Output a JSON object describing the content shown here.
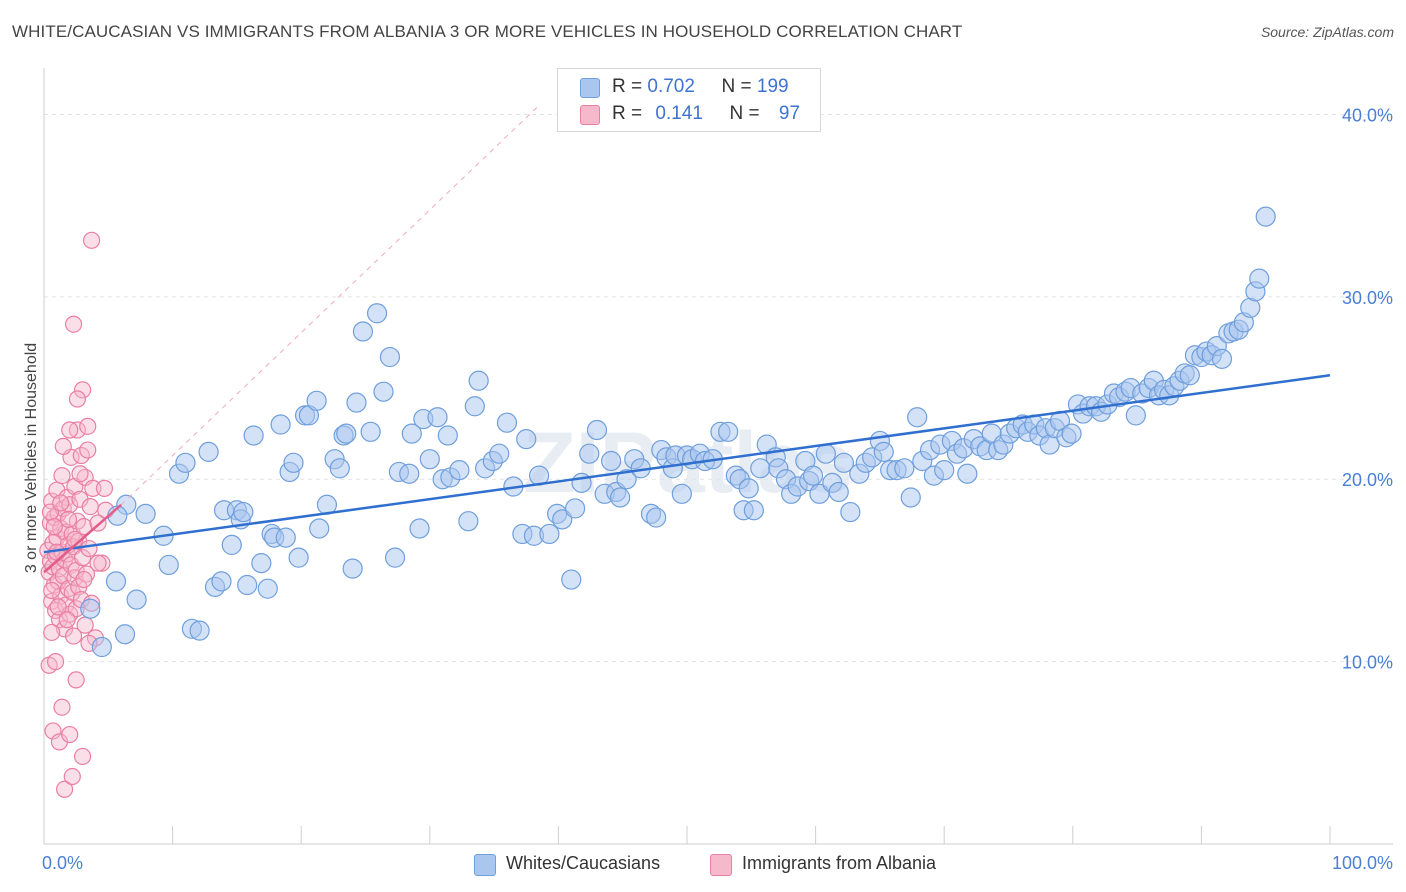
{
  "title": "WHITE/CAUCASIAN VS IMMIGRANTS FROM ALBANIA 3 OR MORE VEHICLES IN HOUSEHOLD CORRELATION CHART",
  "source": "Source: ZipAtlas.com",
  "watermark": "ZIPatlas",
  "colors": {
    "blue_fill": "#a9c6ef",
    "blue_stroke": "#6f9fdc",
    "blue_line": "#2f6fcf",
    "pink_fill": "#f6b8cb",
    "pink_stroke": "#ea7fa2",
    "pink_line": "#e25d8a",
    "tick_text": "#4a7fd4",
    "grid": "#e3e3e3"
  },
  "legend_top": {
    "rows": [
      {
        "r_label": "R =",
        "r_value": "0.702",
        "n_label": "N =",
        "n_value": "199"
      },
      {
        "r_label": "R =",
        "r_value": "0.141",
        "n_label": "N =",
        "n_value": "97"
      }
    ]
  },
  "legend_bottom": [
    "Whites/Caucasians",
    "Immigrants from Albania"
  ],
  "chart_data": {
    "type": "scatter",
    "title": "WHITE/CAUCASIAN VS IMMIGRANTS FROM ALBANIA 3 OR MORE VEHICLES IN HOUSEHOLD CORRELATION CHART",
    "xlabel": "",
    "ylabel": "3 or more Vehicles in Household",
    "xlim": [
      0,
      100
    ],
    "ylim": [
      0,
      42
    ],
    "x_ticks": [
      0,
      10,
      20,
      30,
      40,
      50,
      60,
      70,
      80,
      90,
      100
    ],
    "x_tick_labels": {
      "0": "0.0%",
      "100": "100.0%"
    },
    "y_ticks": [
      10,
      20,
      30,
      40
    ],
    "y_tick_labels": [
      "10.0%",
      "20.0%",
      "30.0%",
      "40.0%"
    ],
    "grid": "horizontal dashed",
    "legend_position": "top-center",
    "series": [
      {
        "name": "Whites/Caucasians",
        "color": "#a9c6ef",
        "r": 0.702,
        "n": 199,
        "trend": {
          "x": [
            0,
            100
          ],
          "y": [
            16.0,
            25.7
          ]
        },
        "points": [
          [
            6.4,
            18.6
          ],
          [
            7.9,
            18.1
          ],
          [
            9.3,
            16.9
          ],
          [
            9.7,
            15.3
          ],
          [
            10.5,
            20.3
          ],
          [
            11.0,
            20.9
          ],
          [
            11.5,
            11.8
          ],
          [
            12.1,
            11.7
          ],
          [
            12.8,
            21.5
          ],
          [
            13.3,
            14.1
          ],
          [
            13.8,
            14.4
          ],
          [
            14.0,
            18.3
          ],
          [
            14.6,
            16.4
          ],
          [
            15.0,
            18.3
          ],
          [
            15.3,
            17.8
          ],
          [
            15.5,
            18.2
          ],
          [
            15.8,
            14.2
          ],
          [
            16.3,
            22.4
          ],
          [
            16.9,
            15.4
          ],
          [
            17.4,
            14.0
          ],
          [
            17.7,
            17.0
          ],
          [
            17.9,
            16.8
          ],
          [
            18.4,
            23.0
          ],
          [
            18.8,
            16.8
          ],
          [
            19.1,
            20.4
          ],
          [
            19.4,
            20.9
          ],
          [
            19.8,
            15.7
          ],
          [
            20.3,
            23.5
          ],
          [
            20.6,
            23.5
          ],
          [
            21.2,
            24.3
          ],
          [
            21.4,
            17.3
          ],
          [
            22.0,
            18.6
          ],
          [
            22.6,
            21.1
          ],
          [
            23.0,
            20.6
          ],
          [
            23.3,
            22.4
          ],
          [
            23.5,
            22.5
          ],
          [
            24.0,
            15.1
          ],
          [
            24.3,
            24.2
          ],
          [
            24.8,
            28.1
          ],
          [
            25.4,
            22.6
          ],
          [
            25.9,
            29.1
          ],
          [
            26.4,
            24.8
          ],
          [
            26.9,
            26.7
          ],
          [
            27.3,
            15.7
          ],
          [
            27.6,
            20.4
          ],
          [
            28.4,
            20.3
          ],
          [
            28.6,
            22.5
          ],
          [
            29.2,
            17.3
          ],
          [
            29.5,
            23.3
          ],
          [
            30.0,
            21.1
          ],
          [
            30.6,
            23.4
          ],
          [
            31.0,
            20.0
          ],
          [
            31.4,
            22.4
          ],
          [
            31.6,
            20.1
          ],
          [
            32.3,
            20.5
          ],
          [
            33.0,
            17.7
          ],
          [
            33.5,
            24.0
          ],
          [
            33.8,
            25.4
          ],
          [
            34.3,
            20.6
          ],
          [
            34.9,
            21.0
          ],
          [
            35.4,
            21.4
          ],
          [
            36.0,
            23.1
          ],
          [
            36.5,
            19.6
          ],
          [
            37.2,
            17.0
          ],
          [
            37.5,
            22.2
          ],
          [
            38.1,
            16.9
          ],
          [
            38.5,
            20.2
          ],
          [
            39.3,
            17.0
          ],
          [
            39.9,
            18.1
          ],
          [
            40.3,
            17.8
          ],
          [
            41.0,
            14.5
          ],
          [
            41.3,
            18.4
          ],
          [
            41.8,
            19.8
          ],
          [
            42.4,
            21.4
          ],
          [
            43.0,
            22.7
          ],
          [
            43.6,
            19.2
          ],
          [
            44.1,
            21.0
          ],
          [
            44.5,
            19.3
          ],
          [
            44.8,
            19.0
          ],
          [
            45.3,
            20.0
          ],
          [
            45.9,
            21.1
          ],
          [
            46.4,
            20.6
          ],
          [
            47.2,
            18.1
          ],
          [
            47.6,
            17.9
          ],
          [
            48.0,
            21.6
          ],
          [
            48.4,
            21.2
          ],
          [
            48.9,
            20.6
          ],
          [
            49.1,
            21.3
          ],
          [
            49.6,
            19.2
          ],
          [
            50.0,
            21.3
          ],
          [
            50.4,
            21.1
          ],
          [
            51.0,
            21.4
          ],
          [
            51.4,
            21.0
          ],
          [
            52.0,
            21.1
          ],
          [
            52.6,
            22.6
          ],
          [
            53.2,
            22.6
          ],
          [
            53.8,
            20.2
          ],
          [
            54.1,
            20.0
          ],
          [
            54.4,
            18.3
          ],
          [
            54.8,
            19.5
          ],
          [
            55.2,
            18.3
          ],
          [
            55.7,
            20.6
          ],
          [
            56.2,
            21.9
          ],
          [
            56.9,
            21.2
          ],
          [
            57.1,
            20.6
          ],
          [
            57.7,
            20.0
          ],
          [
            58.1,
            19.2
          ],
          [
            58.6,
            19.6
          ],
          [
            59.2,
            21.0
          ],
          [
            59.5,
            19.9
          ],
          [
            59.8,
            20.2
          ],
          [
            60.3,
            19.2
          ],
          [
            60.8,
            21.4
          ],
          [
            61.3,
            19.8
          ],
          [
            61.8,
            19.3
          ],
          [
            62.2,
            20.9
          ],
          [
            62.7,
            18.2
          ],
          [
            63.4,
            20.3
          ],
          [
            63.9,
            20.9
          ],
          [
            64.4,
            21.2
          ],
          [
            65.0,
            22.1
          ],
          [
            65.3,
            21.5
          ],
          [
            65.8,
            20.5
          ],
          [
            66.3,
            20.5
          ],
          [
            66.9,
            20.6
          ],
          [
            67.4,
            19.0
          ],
          [
            67.9,
            23.4
          ],
          [
            68.3,
            21.0
          ],
          [
            68.9,
            21.6
          ],
          [
            69.2,
            20.2
          ],
          [
            69.7,
            21.9
          ],
          [
            70.0,
            20.5
          ],
          [
            70.6,
            22.1
          ],
          [
            71.0,
            21.4
          ],
          [
            71.5,
            21.7
          ],
          [
            71.8,
            20.3
          ],
          [
            72.3,
            22.2
          ],
          [
            72.8,
            21.8
          ],
          [
            73.3,
            21.6
          ],
          [
            73.7,
            22.5
          ],
          [
            74.2,
            21.6
          ],
          [
            74.6,
            21.9
          ],
          [
            75.1,
            22.5
          ],
          [
            75.6,
            22.8
          ],
          [
            76.1,
            23.0
          ],
          [
            76.5,
            22.6
          ],
          [
            77.0,
            23.0
          ],
          [
            77.4,
            22.4
          ],
          [
            77.9,
            22.8
          ],
          [
            78.2,
            21.9
          ],
          [
            78.6,
            22.8
          ],
          [
            79.0,
            23.2
          ],
          [
            79.5,
            22.3
          ],
          [
            79.9,
            22.5
          ],
          [
            80.4,
            24.1
          ],
          [
            80.8,
            23.6
          ],
          [
            81.3,
            24.0
          ],
          [
            81.8,
            24.0
          ],
          [
            82.2,
            23.7
          ],
          [
            82.7,
            24.1
          ],
          [
            83.2,
            24.7
          ],
          [
            83.6,
            24.5
          ],
          [
            84.1,
            24.8
          ],
          [
            84.5,
            25.0
          ],
          [
            84.9,
            23.5
          ],
          [
            85.4,
            24.7
          ],
          [
            85.9,
            25.0
          ],
          [
            86.3,
            25.4
          ],
          [
            86.7,
            24.6
          ],
          [
            87.1,
            24.9
          ],
          [
            87.5,
            24.6
          ],
          [
            87.9,
            25.1
          ],
          [
            88.3,
            25.4
          ],
          [
            88.7,
            25.8
          ],
          [
            89.1,
            25.7
          ],
          [
            89.5,
            26.8
          ],
          [
            90.0,
            26.7
          ],
          [
            90.4,
            27.0
          ],
          [
            90.8,
            26.8
          ],
          [
            91.2,
            27.3
          ],
          [
            91.6,
            26.6
          ],
          [
            92.1,
            28.0
          ],
          [
            92.5,
            28.1
          ],
          [
            92.9,
            28.2
          ],
          [
            93.3,
            28.6
          ],
          [
            93.8,
            29.4
          ],
          [
            94.2,
            30.3
          ],
          [
            94.5,
            31.0
          ],
          [
            95.0,
            34.4
          ],
          [
            5.7,
            18.0
          ],
          [
            3.6,
            12.9
          ],
          [
            4.5,
            10.8
          ],
          [
            5.6,
            14.4
          ],
          [
            6.3,
            11.5
          ],
          [
            7.2,
            13.4
          ]
        ]
      },
      {
        "name": "Immigrants from Albania",
        "color": "#f6b8cb",
        "r": 0.141,
        "n": 97,
        "trend": {
          "x": [
            0,
            6.0
          ],
          "y": [
            14.9,
            18.6
          ]
        },
        "points": [
          [
            0.3,
            16.1
          ],
          [
            0.4,
            14.9
          ],
          [
            0.5,
            17.6
          ],
          [
            0.5,
            15.5
          ],
          [
            0.6,
            18.8
          ],
          [
            0.6,
            13.3
          ],
          [
            0.7,
            15.2
          ],
          [
            0.7,
            16.5
          ],
          [
            0.8,
            14.2
          ],
          [
            0.8,
            17.9
          ],
          [
            0.9,
            12.8
          ],
          [
            0.9,
            15.8
          ],
          [
            1.0,
            19.4
          ],
          [
            1.0,
            16.8
          ],
          [
            1.1,
            14.4
          ],
          [
            1.1,
            18.1
          ],
          [
            1.2,
            12.3
          ],
          [
            1.2,
            15.1
          ],
          [
            1.3,
            17.3
          ],
          [
            1.3,
            13.6
          ],
          [
            1.4,
            16.0
          ],
          [
            1.4,
            20.2
          ],
          [
            1.5,
            14.7
          ],
          [
            1.5,
            18.4
          ],
          [
            1.6,
            11.8
          ],
          [
            1.6,
            15.6
          ],
          [
            1.7,
            17.1
          ],
          [
            1.7,
            13.1
          ],
          [
            1.8,
            19.0
          ],
          [
            1.8,
            15.9
          ],
          [
            1.9,
            14.0
          ],
          [
            1.9,
            16.4
          ],
          [
            2.0,
            12.6
          ],
          [
            2.0,
            18.6
          ],
          [
            2.1,
            15.3
          ],
          [
            2.1,
            21.2
          ],
          [
            2.2,
            13.8
          ],
          [
            2.2,
            17.0
          ],
          [
            2.3,
            11.4
          ],
          [
            2.3,
            16.3
          ],
          [
            2.4,
            14.6
          ],
          [
            2.4,
            19.6
          ],
          [
            2.5,
            12.9
          ],
          [
            2.5,
            15.0
          ],
          [
            2.6,
            22.7
          ],
          [
            2.6,
            17.7
          ],
          [
            2.7,
            14.1
          ],
          [
            2.7,
            16.6
          ],
          [
            2.8,
            18.9
          ],
          [
            2.9,
            13.4
          ],
          [
            2.9,
            21.3
          ],
          [
            3.0,
            15.7
          ],
          [
            3.0,
            24.9
          ],
          [
            3.1,
            17.4
          ],
          [
            3.2,
            12.0
          ],
          [
            3.2,
            20.1
          ],
          [
            3.3,
            14.8
          ],
          [
            3.4,
            22.9
          ],
          [
            3.5,
            16.2
          ],
          [
            3.6,
            18.5
          ],
          [
            3.7,
            13.2
          ],
          [
            3.8,
            19.5
          ],
          [
            4.0,
            11.3
          ],
          [
            4.2,
            17.6
          ],
          [
            4.5,
            15.4
          ],
          [
            4.8,
            18.3
          ],
          [
            0.4,
            9.8
          ],
          [
            0.6,
            11.6
          ],
          [
            0.7,
            6.2
          ],
          [
            0.9,
            10.0
          ],
          [
            1.2,
            5.6
          ],
          [
            1.4,
            7.5
          ],
          [
            1.6,
            3.0
          ],
          [
            2.0,
            6.0
          ],
          [
            2.2,
            3.7
          ],
          [
            2.5,
            9.0
          ],
          [
            3.0,
            4.8
          ],
          [
            3.5,
            11.0
          ],
          [
            2.3,
            28.5
          ],
          [
            3.7,
            33.1
          ],
          [
            2.6,
            24.4
          ],
          [
            3.4,
            21.6
          ],
          [
            2.0,
            22.7
          ],
          [
            2.8,
            20.3
          ],
          [
            1.5,
            21.8
          ],
          [
            4.2,
            15.4
          ],
          [
            4.7,
            19.5
          ],
          [
            1.8,
            12.3
          ],
          [
            0.5,
            18.2
          ],
          [
            0.8,
            17.4
          ],
          [
            1.0,
            16.0
          ],
          [
            1.3,
            18.7
          ],
          [
            1.9,
            17.8
          ],
          [
            2.4,
            16.7
          ],
          [
            3.1,
            14.5
          ],
          [
            0.6,
            13.9
          ],
          [
            1.1,
            13.0
          ]
        ]
      }
    ]
  }
}
